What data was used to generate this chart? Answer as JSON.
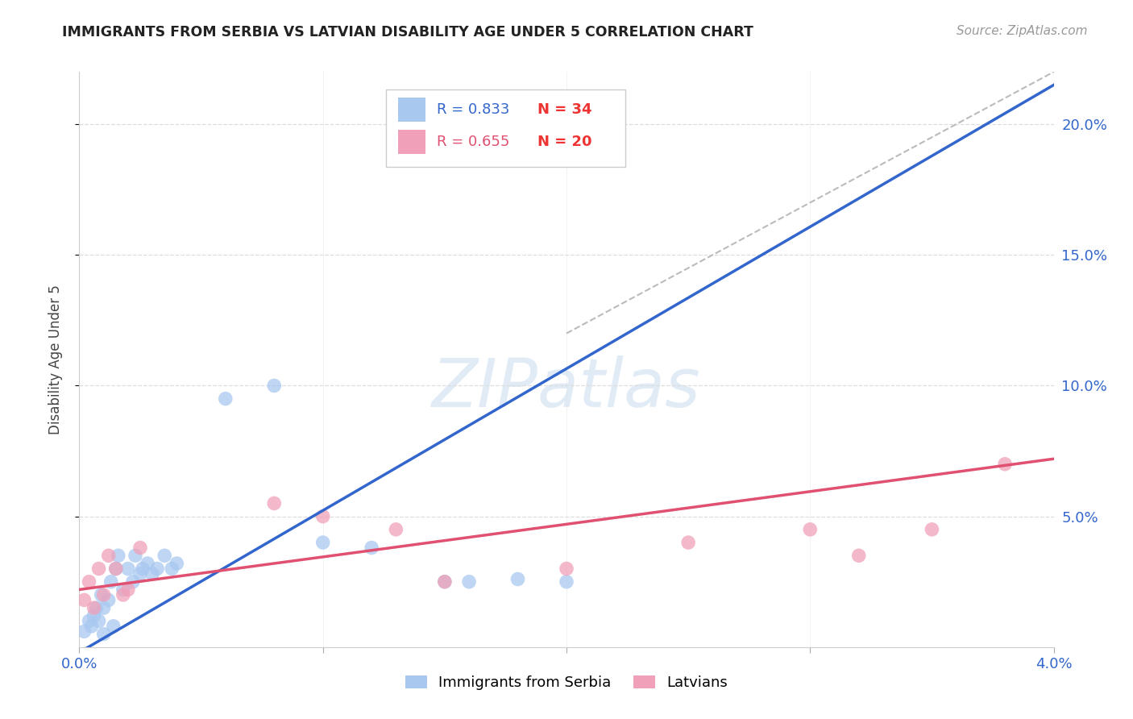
{
  "title": "IMMIGRANTS FROM SERBIA VS LATVIAN DISABILITY AGE UNDER 5 CORRELATION CHART",
  "source": "Source: ZipAtlas.com",
  "ylabel": "Disability Age Under 5",
  "legend_blue_r": "R = 0.833",
  "legend_blue_n": "N = 34",
  "legend_pink_r": "R = 0.655",
  "legend_pink_n": "N = 20",
  "blue_color": "#A8C8F0",
  "pink_color": "#F0A0B8",
  "blue_line_color": "#3366CC",
  "pink_line_color": "#E05070",
  "dash_color": "#BBBBBB",
  "grid_color": "#DDDDDD",
  "watermark_color": "#C8DCF0",
  "watermark": "ZIPatlas",
  "n_color": "#EE3333",
  "xtick_color": "#3366CC",
  "ytick_color": "#3366CC",
  "xlim": [
    0.0,
    0.04
  ],
  "ylim": [
    0.0,
    0.22
  ],
  "blue_x": [
    0.0002,
    0.0004,
    0.0005,
    0.0006,
    0.0007,
    0.0008,
    0.0009,
    0.001,
    0.001,
    0.0012,
    0.0013,
    0.0014,
    0.0015,
    0.0016,
    0.0018,
    0.002,
    0.0022,
    0.0023,
    0.0025,
    0.0026,
    0.0028,
    0.003,
    0.0032,
    0.0035,
    0.0038,
    0.004,
    0.006,
    0.008,
    0.01,
    0.012,
    0.015,
    0.016,
    0.018,
    0.02
  ],
  "blue_y": [
    0.006,
    0.01,
    0.008,
    0.012,
    0.015,
    0.01,
    0.02,
    0.005,
    0.015,
    0.018,
    0.025,
    0.008,
    0.03,
    0.035,
    0.022,
    0.03,
    0.025,
    0.035,
    0.028,
    0.03,
    0.032,
    0.028,
    0.03,
    0.035,
    0.03,
    0.032,
    0.095,
    0.1,
    0.04,
    0.038,
    0.025,
    0.025,
    0.026,
    0.025
  ],
  "pink_x": [
    0.0002,
    0.0004,
    0.0006,
    0.0008,
    0.001,
    0.0012,
    0.0015,
    0.0018,
    0.002,
    0.0025,
    0.008,
    0.01,
    0.013,
    0.015,
    0.02,
    0.025,
    0.03,
    0.032,
    0.035,
    0.038
  ],
  "pink_y": [
    0.018,
    0.025,
    0.015,
    0.03,
    0.02,
    0.035,
    0.03,
    0.02,
    0.022,
    0.038,
    0.055,
    0.05,
    0.045,
    0.025,
    0.03,
    0.04,
    0.045,
    0.035,
    0.045,
    0.07
  ],
  "blue_line_x0": 0.0,
  "blue_line_y0": -0.002,
  "blue_line_x1": 0.04,
  "blue_line_y1": 0.215,
  "pink_line_x0": 0.0,
  "pink_line_y0": 0.022,
  "pink_line_x1": 0.04,
  "pink_line_y1": 0.072,
  "dash_line_x0": 0.02,
  "dash_line_y0": 0.12,
  "dash_line_x1": 0.04,
  "dash_line_y1": 0.22,
  "xticks": [
    0.0,
    0.01,
    0.02,
    0.03,
    0.04
  ],
  "xtick_labels": [
    "0.0%",
    "",
    "",
    "",
    "4.0%"
  ],
  "yticks": [
    0.05,
    0.1,
    0.15,
    0.2
  ],
  "ytick_labels": [
    "5.0%",
    "10.0%",
    "15.0%",
    "20.0%"
  ]
}
